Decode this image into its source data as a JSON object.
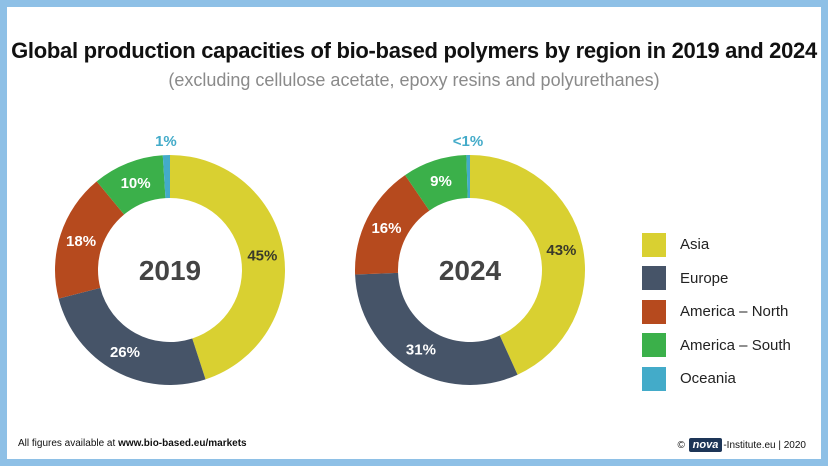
{
  "title": "Global production capacities of bio-based polymers by region in 2019 and 2024",
  "subtitle": "(excluding cellulose acetate, epoxy resins and polyurethanes)",
  "colors": {
    "Asia": "#d9d031",
    "Europe": "#465468",
    "America – North": "#b64a1e",
    "America – South": "#3bb04a",
    "Oceania": "#43abc9"
  },
  "legend": [
    "Asia",
    "Europe",
    "America – North",
    "America – South",
    "Oceania"
  ],
  "chart_data": [
    {
      "type": "pie",
      "center_label": "2019",
      "categories": [
        "Asia",
        "Europe",
        "America – North",
        "America – South",
        "Oceania"
      ],
      "values": [
        45,
        26,
        18,
        10,
        1
      ],
      "data_labels": [
        "45%",
        "26%",
        "18%",
        "10%",
        "1%"
      ]
    },
    {
      "type": "pie",
      "center_label": "2024",
      "categories": [
        "Asia",
        "Europe",
        "America – North",
        "America – South",
        "Oceania"
      ],
      "values": [
        43,
        31,
        16,
        9,
        0.5
      ],
      "data_labels": [
        "43%",
        "31%",
        "16%",
        "9%",
        "<1%"
      ]
    }
  ],
  "footer": {
    "left_prefix": "All figures available at ",
    "left_link": "www.bio-based.eu/markets",
    "right_copyright": "©",
    "right_logo": "nova",
    "right_suffix": "-Institute.eu | 2020"
  }
}
